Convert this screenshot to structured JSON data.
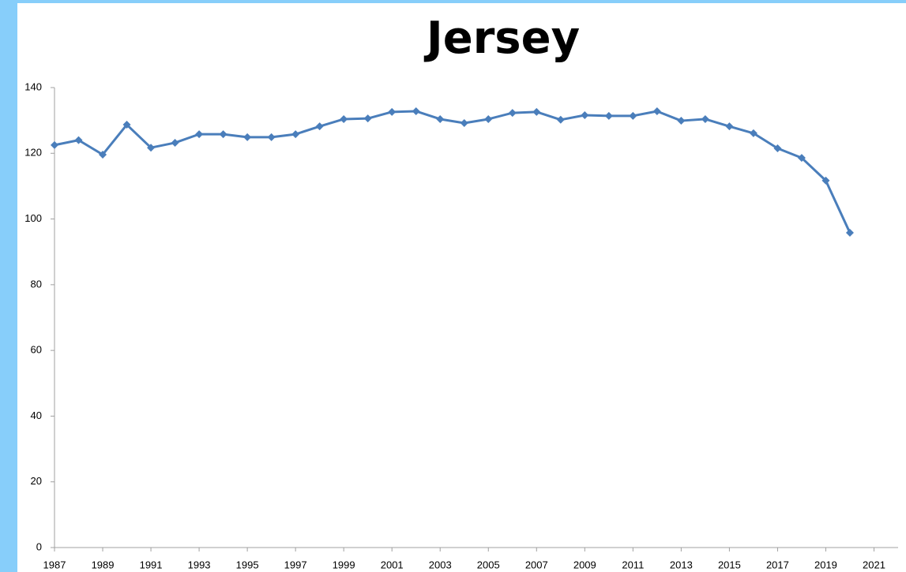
{
  "chart_data": {
    "type": "line",
    "title": "Jersey",
    "x": [
      1987,
      1988,
      1989,
      1990,
      1991,
      1992,
      1993,
      1994,
      1995,
      1996,
      1997,
      1998,
      1999,
      2000,
      2001,
      2002,
      2003,
      2004,
      2005,
      2006,
      2007,
      2008,
      2009,
      2010,
      2011,
      2012,
      2013,
      2014,
      2015,
      2016,
      2017,
      2018,
      2019,
      2020
    ],
    "series": [
      {
        "name": "Jersey",
        "color": "#4a7ebb",
        "values": [
          122.5,
          124,
          119.6,
          128.7,
          121.7,
          123.2,
          125.8,
          125.8,
          124.9,
          124.9,
          125.8,
          128.2,
          130.4,
          130.6,
          132.6,
          132.8,
          130.4,
          129.2,
          130.4,
          132.3,
          132.6,
          130.2,
          131.6,
          131.4,
          131.4,
          132.8,
          129.9,
          130.4,
          128.2,
          126.1,
          121.5,
          118.6,
          111.7,
          95.8
        ]
      }
    ],
    "xlim": [
      1987,
      2022
    ],
    "xticks": [
      1987,
      1989,
      1991,
      1993,
      1995,
      1997,
      1999,
      2001,
      2003,
      2005,
      2007,
      2009,
      2011,
      2013,
      2015,
      2017,
      2019,
      2021
    ],
    "ylim": [
      0,
      140
    ],
    "yticks": [
      0,
      20,
      40,
      60,
      80,
      100,
      120,
      140
    ],
    "grid": false
  }
}
